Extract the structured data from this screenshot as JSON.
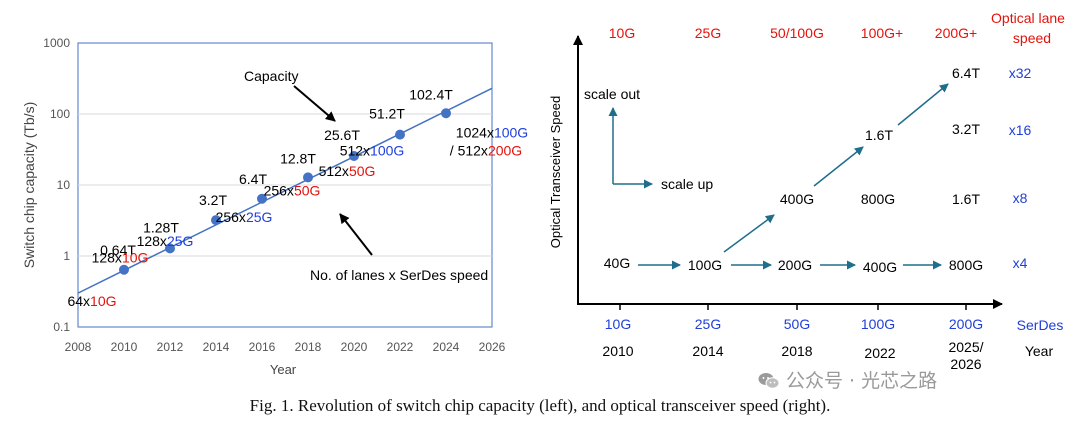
{
  "chart_data": [
    {
      "type": "scatter",
      "title": "",
      "xlabel": "Year",
      "ylabel": "Switch chip capacity (Tb/s)",
      "yscale": "log",
      "xlim": [
        2008,
        2026
      ],
      "ylim": [
        0.1,
        1000
      ],
      "x_ticks": [
        "2008",
        "2010",
        "2012",
        "2014",
        "2016",
        "2018",
        "2020",
        "2022",
        "2024",
        "2026"
      ],
      "y_ticks": [
        "0.1",
        "1",
        "10",
        "100",
        "1000"
      ],
      "trendline": {
        "from": [
          2008,
          0.3
        ],
        "to": [
          2026,
          230
        ]
      },
      "points": [
        {
          "x": 2010,
          "y": 0.64,
          "label": "0.64T",
          "config": [
            {
              "t": "64x",
              "c": "black"
            },
            {
              "t": "10G",
              "c": "red"
            }
          ]
        },
        {
          "x": 2012,
          "y": 1.28,
          "label": "1.28T",
          "config": [
            {
              "t": "128x",
              "c": "black"
            },
            {
              "t": "10G",
              "c": "red"
            }
          ]
        },
        {
          "x": 2014,
          "y": 3.2,
          "label": "3.2T",
          "config": [
            {
              "t": "128x",
              "c": "black"
            },
            {
              "t": "25G",
              "c": "blue"
            }
          ]
        },
        {
          "x": 2016,
          "y": 6.4,
          "label": "6.4T",
          "config": [
            {
              "t": "256x",
              "c": "black"
            },
            {
              "t": "25G",
              "c": "blue"
            }
          ]
        },
        {
          "x": 2018,
          "y": 12.8,
          "label": "12.8T",
          "config": [
            {
              "t": "256x",
              "c": "black"
            },
            {
              "t": "50G",
              "c": "red"
            }
          ]
        },
        {
          "x": 2020,
          "y": 25.6,
          "label": "25.6T",
          "config": [
            {
              "t": "512x",
              "c": "black"
            },
            {
              "t": "50G",
              "c": "red"
            }
          ]
        },
        {
          "x": 2022,
          "y": 51.2,
          "label": "51.2T",
          "config": [
            {
              "t": "512x",
              "c": "black"
            },
            {
              "t": "100G",
              "c": "blue"
            }
          ]
        },
        {
          "x": 2024,
          "y": 102.4,
          "label": "102.4T",
          "config": [
            {
              "t": "1024x",
              "c": "black"
            },
            {
              "t": "100G",
              "c": "blue"
            }
          ],
          "config2": [
            {
              "t": "/ 512x",
              "c": "black"
            },
            {
              "t": "200G",
              "c": "red"
            }
          ]
        }
      ],
      "annotations": {
        "capacity": "Capacity",
        "lanes": "No. of lanes x SerDes speed"
      }
    },
    {
      "type": "diagram",
      "ylabel": "Optical Transceiver Speed",
      "top_header": [
        "10G",
        "25G",
        "50/100G",
        "100G+",
        "200G+"
      ],
      "top_header_title": [
        "Optical lane",
        "speed"
      ],
      "serdes_row": [
        "10G",
        "25G",
        "50G",
        "100G",
        "200G"
      ],
      "serdes_title": "SerDes",
      "year_row": [
        "2010",
        "2014",
        "2018",
        "2022",
        "2025/",
        "2026"
      ],
      "year_title": "Year",
      "scale_out": "scale out",
      "scale_up": "scale up",
      "node_labels": [
        "40G",
        "100G",
        "200G",
        "400G",
        "800G",
        "400G",
        "800G",
        "1.6T",
        "1.6T",
        "3.2T",
        "6.4T"
      ],
      "multipliers": [
        "x32",
        "x16",
        "x8",
        "x4"
      ]
    }
  ],
  "caption": "Fig. 1. Revolution of switch chip capacity (left), and optical transceiver speed (right).",
  "watermark": "公众号 · 光芯之路",
  "colors": {
    "blue": "#1f3fd8",
    "red": "#e3120b",
    "dot": "#4472c4",
    "line": "#4472c4",
    "arrow": "#1f6e8c"
  }
}
